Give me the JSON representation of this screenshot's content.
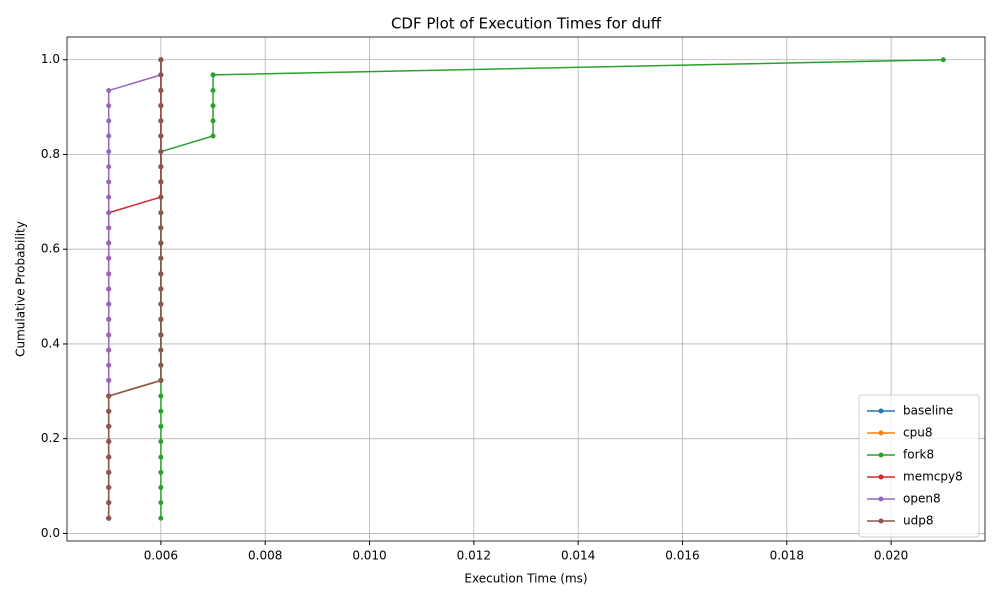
{
  "chart_data": {
    "type": "line",
    "title": "CDF Plot of Execution Times for duff",
    "x_label": "Execution Time (ms)",
    "y_label": "Cumulative Probability",
    "xlim": [
      0.0042,
      0.0218
    ],
    "ylim": [
      -0.016,
      1.048
    ],
    "xticks": [
      0.006,
      0.008,
      {
        "value": 0.01,
        "label": "0.010"
      },
      0.012,
      0.014,
      0.016,
      0.018,
      {
        "value": 0.02,
        "label": "0.020"
      }
    ],
    "yticks": [
      {
        "value": 0,
        "label": "0.0"
      },
      0.2,
      0.4,
      0.6,
      0.8,
      {
        "value": 1,
        "label": "1.0"
      }
    ],
    "grid": true,
    "legend": "lower right",
    "series": [
      {
        "name": "baseline",
        "color": "#1f77b4",
        "x": [
          0.005,
          0.005,
          0.005,
          0.005,
          0.005,
          0.005,
          0.005,
          0.005,
          0.005,
          0.006,
          0.006,
          0.006,
          0.006,
          0.006,
          0.006,
          0.006,
          0.006,
          0.006,
          0.006,
          0.006,
          0.006,
          0.006,
          0.006,
          0.006,
          0.006,
          0.006,
          0.006,
          0.006,
          0.006,
          0.006,
          0.006
        ],
        "values": [
          0.032,
          0.065,
          0.097,
          0.129,
          0.161,
          0.194,
          0.226,
          0.258,
          0.29,
          0.323,
          0.355,
          0.387,
          0.419,
          0.452,
          0.484,
          0.516,
          0.548,
          0.581,
          0.613,
          0.645,
          0.677,
          0.71,
          0.742,
          0.774,
          0.806,
          0.839,
          0.871,
          0.903,
          0.935,
          0.968,
          1.0
        ]
      },
      {
        "name": "cpu8",
        "color": "#ff7f0e",
        "x": [
          0.005,
          0.005,
          0.005,
          0.005,
          0.005,
          0.005,
          0.005,
          0.005,
          0.005,
          0.006,
          0.006,
          0.006,
          0.006,
          0.006,
          0.006,
          0.006,
          0.006,
          0.006,
          0.006,
          0.006,
          0.006,
          0.006,
          0.006,
          0.006,
          0.006,
          0.006,
          0.006,
          0.006,
          0.006,
          0.006,
          0.006
        ],
        "values": [
          0.032,
          0.065,
          0.097,
          0.129,
          0.161,
          0.194,
          0.226,
          0.258,
          0.29,
          0.323,
          0.355,
          0.387,
          0.419,
          0.452,
          0.484,
          0.516,
          0.548,
          0.581,
          0.613,
          0.645,
          0.677,
          0.71,
          0.742,
          0.774,
          0.806,
          0.839,
          0.871,
          0.903,
          0.935,
          0.968,
          1.0
        ]
      },
      {
        "name": "fork8",
        "color": "#2ca02c",
        "x": [
          0.006,
          0.006,
          0.006,
          0.006,
          0.006,
          0.006,
          0.006,
          0.006,
          0.006,
          0.006,
          0.006,
          0.006,
          0.006,
          0.006,
          0.006,
          0.006,
          0.006,
          0.006,
          0.006,
          0.006,
          0.006,
          0.006,
          0.006,
          0.006,
          0.006,
          0.007,
          0.007,
          0.007,
          0.007,
          0.007,
          0.021
        ],
        "values": [
          0.032,
          0.065,
          0.097,
          0.129,
          0.161,
          0.194,
          0.226,
          0.258,
          0.29,
          0.323,
          0.355,
          0.387,
          0.419,
          0.452,
          0.484,
          0.516,
          0.548,
          0.581,
          0.613,
          0.645,
          0.677,
          0.71,
          0.742,
          0.774,
          0.806,
          0.839,
          0.871,
          0.903,
          0.935,
          0.968,
          1.0
        ]
      },
      {
        "name": "memcpy8",
        "color": "#d62728",
        "x": [
          0.005,
          0.005,
          0.005,
          0.005,
          0.005,
          0.005,
          0.005,
          0.005,
          0.005,
          0.005,
          0.005,
          0.005,
          0.005,
          0.005,
          0.005,
          0.005,
          0.005,
          0.005,
          0.005,
          0.005,
          0.005,
          0.006,
          0.006,
          0.006,
          0.006,
          0.006,
          0.006,
          0.006,
          0.006,
          0.006,
          0.006
        ],
        "values": [
          0.032,
          0.065,
          0.097,
          0.129,
          0.161,
          0.194,
          0.226,
          0.258,
          0.29,
          0.323,
          0.355,
          0.387,
          0.419,
          0.452,
          0.484,
          0.516,
          0.548,
          0.581,
          0.613,
          0.645,
          0.677,
          0.71,
          0.742,
          0.774,
          0.806,
          0.839,
          0.871,
          0.903,
          0.935,
          0.968,
          1.0
        ]
      },
      {
        "name": "open8",
        "color": "#9467bd",
        "x": [
          0.005,
          0.005,
          0.005,
          0.005,
          0.005,
          0.005,
          0.005,
          0.005,
          0.005,
          0.005,
          0.005,
          0.005,
          0.005,
          0.005,
          0.005,
          0.005,
          0.005,
          0.005,
          0.005,
          0.005,
          0.005,
          0.005,
          0.005,
          0.005,
          0.005,
          0.005,
          0.005,
          0.005,
          0.005,
          0.006,
          0.006
        ],
        "values": [
          0.032,
          0.065,
          0.097,
          0.129,
          0.161,
          0.194,
          0.226,
          0.258,
          0.29,
          0.323,
          0.355,
          0.387,
          0.419,
          0.452,
          0.484,
          0.516,
          0.548,
          0.581,
          0.613,
          0.645,
          0.677,
          0.71,
          0.742,
          0.774,
          0.806,
          0.839,
          0.871,
          0.903,
          0.935,
          0.968,
          1.0
        ]
      },
      {
        "name": "udp8",
        "color": "#8c564b",
        "x": [
          0.005,
          0.005,
          0.005,
          0.005,
          0.005,
          0.005,
          0.005,
          0.005,
          0.005,
          0.006,
          0.006,
          0.006,
          0.006,
          0.006,
          0.006,
          0.006,
          0.006,
          0.006,
          0.006,
          0.006,
          0.006,
          0.006,
          0.006,
          0.006,
          0.006,
          0.006,
          0.006,
          0.006,
          0.006,
          0.006,
          0.006
        ],
        "values": [
          0.032,
          0.065,
          0.097,
          0.129,
          0.161,
          0.194,
          0.226,
          0.258,
          0.29,
          0.323,
          0.355,
          0.387,
          0.419,
          0.452,
          0.484,
          0.516,
          0.548,
          0.581,
          0.613,
          0.645,
          0.677,
          0.71,
          0.742,
          0.774,
          0.806,
          0.839,
          0.871,
          0.903,
          0.935,
          0.968,
          1.0
        ]
      }
    ]
  }
}
